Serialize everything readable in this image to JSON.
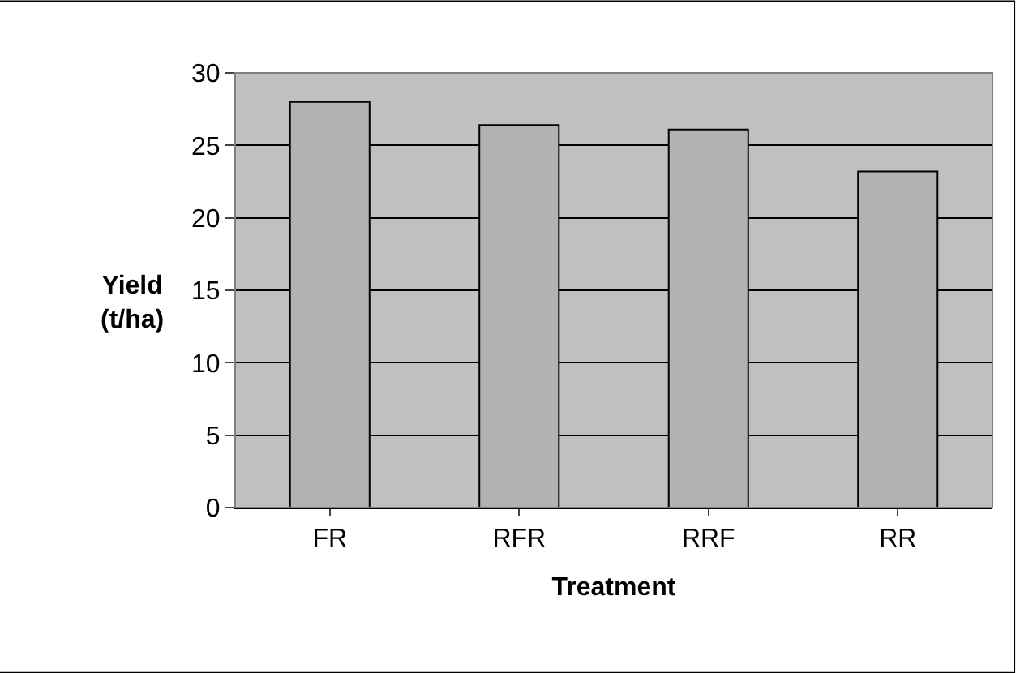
{
  "chart_data": {
    "type": "bar",
    "xlabel": "Treatment",
    "ylabel": "Yield\n(t/ha)",
    "categories": [
      "FR",
      "RFR",
      "RRF",
      "RR"
    ],
    "values": [
      28.0,
      26.4,
      26.1,
      23.2
    ],
    "color": "#b2b2b2",
    "ylim": [
      0,
      30
    ],
    "yticks": [
      0,
      5,
      10,
      15,
      20,
      25,
      30
    ],
    "grid": "y"
  }
}
